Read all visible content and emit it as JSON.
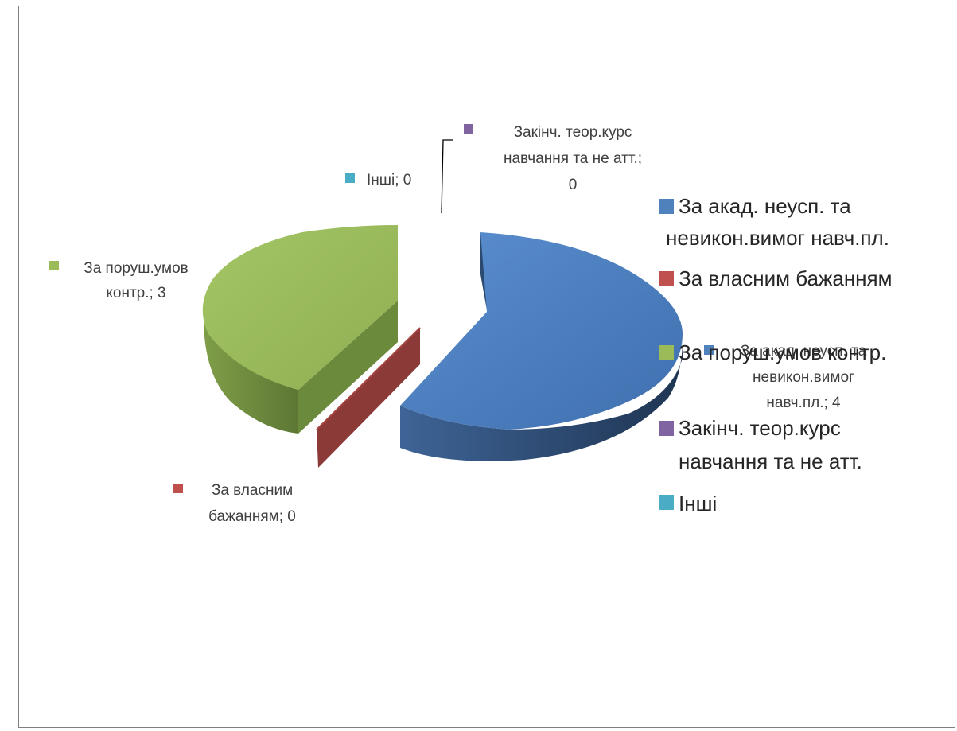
{
  "chart_data": {
    "type": "pie",
    "title": "",
    "style": "3d-exploded",
    "slices": [
      {
        "label": "За акад. неусп. та невикон.вимог навч.пл.",
        "value": 4,
        "color": "#4f81bd",
        "data_label": [
          "За акад. неусп. та",
          "невикон.вимог",
          "навч.пл.; 4"
        ]
      },
      {
        "label": "За власним бажанням",
        "value": 0,
        "color": "#c0504d",
        "data_label": [
          "За власним",
          "бажанням; 0"
        ]
      },
      {
        "label": "За поруш.умов контр.",
        "value": 3,
        "color": "#9bbb59",
        "data_label": [
          "За поруш.умов",
          "контр.; 3"
        ]
      },
      {
        "label": "Закінч. теор.курс навчання та не атт.",
        "value": 0,
        "color": "#8064a2",
        "data_label": [
          "Закінч. теор.курс",
          "навчання та не атт.;",
          "0"
        ]
      },
      {
        "label": "Інші",
        "value": 0,
        "color": "#4bacc6",
        "data_label": [
          "Інші; 0"
        ]
      }
    ],
    "legend": {
      "position": "right",
      "entries": [
        {
          "color": "#4f81bd",
          "lines": [
            "За акад. неусп. та",
            "невикон.вимог навч.пл."
          ]
        },
        {
          "color": "#c0504d",
          "lines": [
            "За власним бажанням"
          ]
        },
        {
          "color": "#9bbb59",
          "lines": [
            "За поруш.умов контр."
          ]
        },
        {
          "color": "#8064a2",
          "lines": [
            "Закінч. теор.курс",
            "навчання та не атт."
          ]
        },
        {
          "color": "#4bacc6",
          "lines": [
            "Інші"
          ]
        }
      ]
    }
  }
}
